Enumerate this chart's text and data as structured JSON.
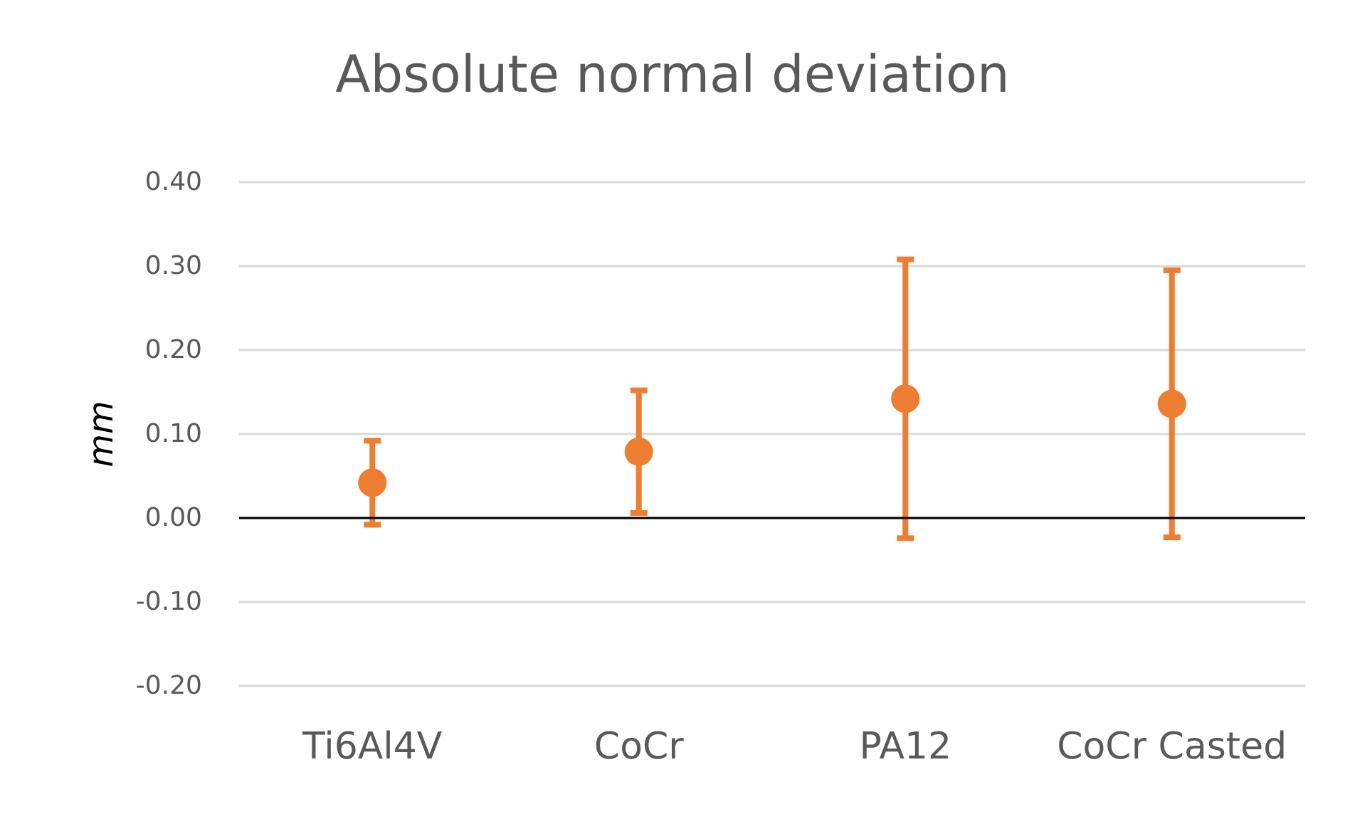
{
  "chart_data": {
    "type": "scatter",
    "title": "Absolute normal deviation",
    "ylabel": "mm",
    "categories": [
      "Ti6Al4V",
      "CoCr",
      "PA12",
      "CoCr Casted"
    ],
    "series": [
      {
        "color": "#ed7d31",
        "values": [
          0.042,
          0.079,
          0.142,
          0.136
        ],
        "errors": [
          0.05,
          0.073,
          0.166,
          0.159
        ]
      }
    ],
    "ylim": [
      -0.2,
      0.4
    ],
    "yticks": [
      {
        "value": -0.2,
        "label": "-0.20"
      },
      {
        "value": -0.1,
        "label": "-0.10"
      },
      {
        "value": 0,
        "label": "0.00"
      },
      {
        "value": 0.1,
        "label": "0.10"
      },
      {
        "value": 0.2,
        "label": "0.20"
      },
      {
        "value": 0.3,
        "label": "0.30"
      },
      {
        "value": 0.4,
        "label": "0.40"
      }
    ],
    "ref_lines": [
      {
        "axis": "y",
        "value": 0,
        "color": "#000000"
      }
    ],
    "grid": "y",
    "marker": "circle"
  }
}
